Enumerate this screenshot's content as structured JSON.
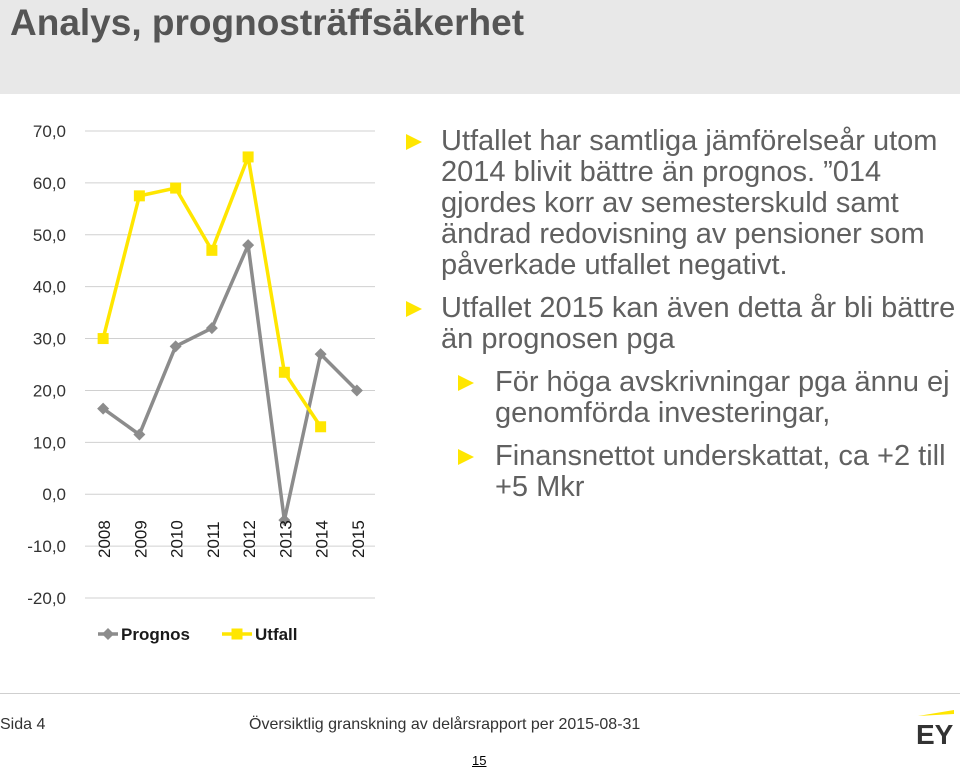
{
  "header": {
    "title": "Analys, prognosträffsäkerhet"
  },
  "bullets": [
    {
      "level": 1,
      "text": "Utfallet har samtliga jämförelseår utom 2014 blivit bättre än prognos. ”014 gjordes korr av semesterskuld samt ändrad redovisning av pensioner som påverkade utfallet negativt."
    },
    {
      "level": 1,
      "text": "Utfallet 2015 kan även detta år bli bättre än prognosen pga"
    },
    {
      "level": 2,
      "text": "För höga avskrivningar pga ännu ej genomförda investeringar,"
    },
    {
      "level": 2,
      "text": "Finansnettot underskattat, ca +2 till +5 Mkr"
    }
  ],
  "footer": {
    "side": "Sida 4",
    "text": "Översiktlig granskning av delårsrapport per 2015-08-31",
    "page": "15",
    "logo": "EY"
  },
  "colors": {
    "prognos": "#8c8c8c",
    "utfall": "#ffe600",
    "bullet": "#ffe600"
  },
  "chart_data": {
    "type": "line",
    "categories": [
      "2008",
      "2009",
      "2010",
      "2011",
      "2012",
      "2013",
      "2014",
      "2015"
    ],
    "ylim": [
      -20,
      70
    ],
    "yticks": [
      "70,0",
      "60,0",
      "50,0",
      "40,0",
      "30,0",
      "20,0",
      "10,0",
      "0,0",
      "-10,0",
      "-20,0"
    ],
    "grid": true,
    "legend": "bottom",
    "series": [
      {
        "name": "Prognos",
        "values": [
          16.5,
          11.5,
          28.5,
          32.0,
          48.0,
          -5.0,
          27.0,
          20.0
        ]
      },
      {
        "name": "Utfall",
        "values": [
          30.0,
          57.5,
          59.0,
          47.0,
          65.0,
          23.5,
          13.0,
          null
        ]
      }
    ]
  }
}
